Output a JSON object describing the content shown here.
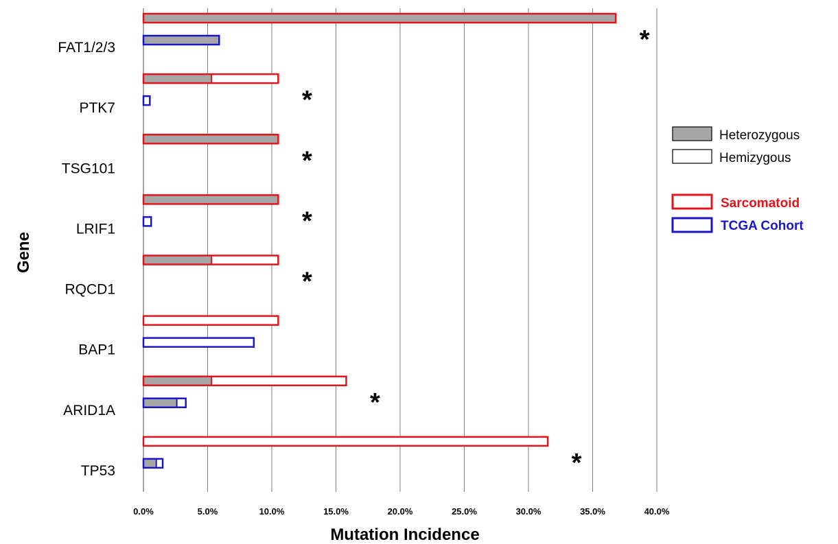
{
  "chart_data": {
    "type": "bar",
    "orientation": "horizontal",
    "stacked": true,
    "xlabel": "Mutation Incidence",
    "ylabel": "Gene",
    "xlim": [
      0,
      0.4
    ],
    "xticks": [
      "0.0%",
      "5.0%",
      "10.0%",
      "15.0%",
      "20.0%",
      "25.0%",
      "30.0%",
      "35.0%",
      "40.0%"
    ],
    "grid": "vertical",
    "legend_position": "right",
    "legend": {
      "fill": [
        {
          "label": "Heterozygous",
          "color": "#a6a6a6"
        },
        {
          "label": "Hemizygous",
          "color": "#ffffff"
        }
      ],
      "outline": [
        {
          "label": "Sarcomatoid",
          "color": "#e3141b"
        },
        {
          "label": "TCGA Cohort",
          "color": "#1b16c8"
        }
      ]
    },
    "categories": [
      "FAT1/2/3",
      "PTK7",
      "TSG101",
      "LRIF1",
      "RQCD1",
      "BAP1",
      "ARID1A",
      "TP53"
    ],
    "series": [
      {
        "name": "Sarcomatoid",
        "heterozygous": [
          0.368,
          0.053,
          0.105,
          0.105,
          0.053,
          0.0,
          0.053,
          0.0
        ],
        "hemizygous": [
          0.0,
          0.052,
          0.0,
          0.0,
          0.052,
          0.105,
          0.105,
          0.315
        ]
      },
      {
        "name": "TCGA Cohort",
        "heterozygous": [
          0.059,
          0.0,
          0.0,
          0.0,
          0.0,
          0.0,
          0.026,
          0.01
        ],
        "hemizygous": [
          0.0,
          0.005,
          0.0,
          0.006,
          0.0,
          0.086,
          0.007,
          0.005
        ]
      }
    ],
    "significant": [
      true,
      true,
      true,
      true,
      true,
      false,
      true,
      true
    ],
    "annotation_symbol": "*"
  }
}
